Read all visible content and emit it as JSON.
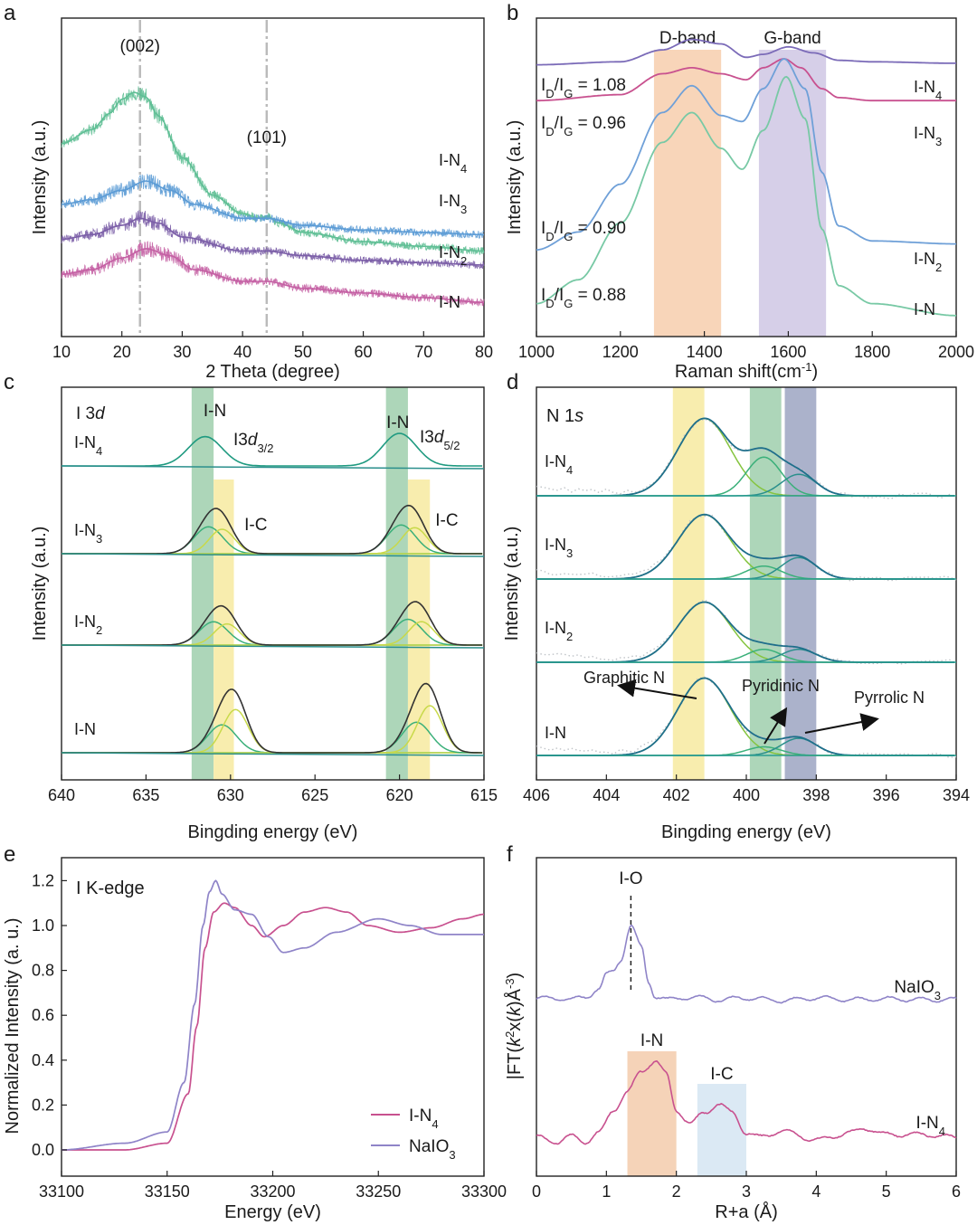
{
  "chart_data": [
    {
      "panel": "a",
      "type": "line",
      "xlabel": "2 Theta (degree)",
      "ylabel": "Intensity (a.u.)",
      "xlim": [
        10,
        80
      ],
      "xticks": [
        "10",
        "20",
        "30",
        "40",
        "50",
        "60",
        "70",
        "80"
      ],
      "annotations": [
        "(002)",
        "(101)"
      ],
      "reference_lines_x": [
        23,
        44
      ],
      "series": [
        {
          "name": "I-N4",
          "color": "#5fbf95",
          "x": [
            10,
            15,
            18,
            20,
            22,
            24,
            26,
            30,
            35,
            40,
            43,
            44,
            46,
            50,
            60,
            70,
            80
          ],
          "y": [
            0.78,
            0.84,
            0.91,
            0.97,
            1.0,
            0.98,
            0.9,
            0.72,
            0.56,
            0.48,
            0.46,
            0.47,
            0.44,
            0.4,
            0.36,
            0.34,
            0.32
          ]
        },
        {
          "name": "I-N3",
          "color": "#5b9bd5",
          "x": [
            10,
            15,
            20,
            24,
            28,
            32,
            40,
            44,
            50,
            60,
            70,
            80
          ],
          "y": [
            0.52,
            0.54,
            0.58,
            0.62,
            0.58,
            0.52,
            0.46,
            0.46,
            0.43,
            0.41,
            0.4,
            0.39
          ]
        },
        {
          "name": "I-N2",
          "color": "#7b5ea7",
          "x": [
            10,
            15,
            20,
            23,
            26,
            30,
            40,
            44,
            50,
            60,
            70,
            80
          ],
          "y": [
            0.37,
            0.39,
            0.43,
            0.46,
            0.44,
            0.38,
            0.32,
            0.32,
            0.3,
            0.28,
            0.27,
            0.26
          ]
        },
        {
          "name": "I-N",
          "color": "#c45fa3",
          "x": [
            10,
            15,
            20,
            24,
            28,
            32,
            40,
            44,
            50,
            60,
            70,
            80
          ],
          "y": [
            0.22,
            0.24,
            0.29,
            0.33,
            0.3,
            0.24,
            0.19,
            0.19,
            0.16,
            0.14,
            0.12,
            0.1
          ]
        }
      ]
    },
    {
      "panel": "b",
      "type": "line",
      "xlabel": "Raman shift(cm",
      "xlabel_sup": "-1",
      "xlabel_end": ")",
      "ylabel": "Intensity (a.u.)",
      "xlim": [
        1000,
        2000
      ],
      "xticks": [
        "1000",
        "1200",
        "1400",
        "1600",
        "1800",
        "2000"
      ],
      "bands": [
        {
          "label": "D-band",
          "range": [
            1280,
            1440
          ],
          "color": "#f8d5b9"
        },
        {
          "label": "G-band",
          "range": [
            1530,
            1690
          ],
          "color": "#d6cfe8"
        }
      ],
      "ratio_labels": [
        "1.08",
        "0.96",
        "0.90",
        "0.88"
      ],
      "series": [
        {
          "name": "I-N4",
          "ratio": "1.08",
          "color": "#7b6bb8",
          "x": [
            1000,
            1200,
            1300,
            1370,
            1440,
            1500,
            1540,
            1600,
            1660,
            1720,
            1800,
            2000
          ],
          "y": [
            0.88,
            0.89,
            0.93,
            0.965,
            0.95,
            0.905,
            0.915,
            0.94,
            0.92,
            0.895,
            0.89,
            0.885
          ]
        },
        {
          "name": "I-N3",
          "ratio": "0.96",
          "color": "#c8518f",
          "x": [
            1000,
            1200,
            1300,
            1370,
            1440,
            1500,
            1540,
            1590,
            1630,
            1680,
            1720,
            1800,
            2000
          ],
          "y": [
            0.76,
            0.78,
            0.85,
            0.87,
            0.85,
            0.83,
            0.87,
            0.9,
            0.87,
            0.8,
            0.77,
            0.76,
            0.76
          ]
        },
        {
          "name": "I-N2",
          "ratio": "0.90",
          "color": "#6fa0d8",
          "x": [
            1000,
            1100,
            1200,
            1300,
            1370,
            1440,
            1490,
            1540,
            1590,
            1640,
            1680,
            1720,
            1800,
            2000
          ],
          "y": [
            0.26,
            0.32,
            0.48,
            0.72,
            0.81,
            0.71,
            0.69,
            0.8,
            0.9,
            0.8,
            0.52,
            0.34,
            0.29,
            0.28
          ]
        },
        {
          "name": "I-N",
          "ratio": "0.88",
          "color": "#78c9a5",
          "x": [
            1000,
            1100,
            1200,
            1300,
            1370,
            1440,
            1490,
            1540,
            1595,
            1640,
            1680,
            1720,
            1800,
            2000
          ],
          "y": [
            0.08,
            0.16,
            0.35,
            0.62,
            0.72,
            0.6,
            0.53,
            0.66,
            0.84,
            0.7,
            0.33,
            0.14,
            0.08,
            0.04
          ]
        }
      ]
    },
    {
      "panel": "c",
      "type": "line",
      "title": "I 3",
      "title_italic": "d",
      "xlabel": "Bingding energy (eV)",
      "ylabel": "Intensity (a.u.)",
      "xlim": [
        640,
        615
      ],
      "reversed_x": true,
      "xticks": [
        "640",
        "635",
        "630",
        "625",
        "620",
        "615"
      ],
      "bands": [
        {
          "label": "I-N",
          "range": [
            632.3,
            631.0
          ],
          "color": "#a9d4b5"
        },
        {
          "label": "I-C",
          "range": [
            631.0,
            629.8
          ],
          "color": "#f8ecaa"
        },
        {
          "label": "I-N",
          "range": [
            620.8,
            619.5
          ],
          "color": "#a9d4b5"
        },
        {
          "label": "I-C",
          "range": [
            619.5,
            618.2
          ],
          "color": "#f8ecaa"
        }
      ],
      "peak_labels": {
        "i3d32": "I3",
        "i3d32_sub": "d",
        "i3d32_subsub": "3/2",
        "i3d52": "I3",
        "i3d52_sub": "d",
        "i3d52_subsub": "5/2"
      },
      "samples": [
        {
          "name": "I-N4",
          "peaks_eV": [
            631.5,
            620.0
          ],
          "heights": [
            0.45,
            0.5
          ]
        },
        {
          "name": "I-N3",
          "peaks_eV": [
            631.3,
            619.9
          ],
          "heights": [
            0.75,
            0.8
          ]
        },
        {
          "name": "I-N2",
          "peaks_eV": [
            631.0,
            619.5
          ],
          "heights": [
            0.65,
            0.72
          ]
        },
        {
          "name": "I-N",
          "peaks_eV": [
            630.5,
            619.0
          ],
          "heights": [
            0.78,
            0.85
          ]
        }
      ]
    },
    {
      "panel": "d",
      "type": "line",
      "title": "N 1",
      "title_italic": "s",
      "xlabel": "Bingding energy (eV)",
      "ylabel": "Intensity (a.u.)",
      "xlim": [
        406,
        394
      ],
      "reversed_x": true,
      "xticks": [
        "406",
        "404",
        "402",
        "400",
        "398",
        "396",
        "394"
      ],
      "bands": [
        {
          "label": "Graphitic N",
          "range": [
            402.1,
            401.2
          ],
          "color": "#f8ecaa"
        },
        {
          "label": "Pyridinic N",
          "range": [
            399.9,
            399.0
          ],
          "color": "#a9d4b5"
        },
        {
          "label": "Pyrrolic N",
          "range": [
            398.9,
            398.0
          ],
          "color": "#a6aec8"
        }
      ],
      "samples": [
        {
          "name": "I-N4",
          "components": [
            [
              401.2,
              0.9
            ],
            [
              399.5,
              0.45
            ],
            [
              398.5,
              0.25
            ]
          ]
        },
        {
          "name": "I-N3",
          "components": [
            [
              401.2,
              0.75
            ],
            [
              399.5,
              0.15
            ],
            [
              398.5,
              0.25
            ]
          ]
        },
        {
          "name": "I-N2",
          "components": [
            [
              401.2,
              0.7
            ],
            [
              399.5,
              0.15
            ],
            [
              398.5,
              0.15
            ]
          ]
        },
        {
          "name": "I-N",
          "components": [
            [
              401.2,
              0.9
            ],
            [
              399.5,
              0.1
            ],
            [
              398.5,
              0.2
            ]
          ]
        }
      ]
    },
    {
      "panel": "e",
      "type": "line",
      "title": "I K-edge",
      "xlabel": "Energy (eV)",
      "ylabel": "Normalized Intensity (a. u.)",
      "xlim": [
        33100,
        33300
      ],
      "ylim": [
        -0.1,
        1.3
      ],
      "xticks": [
        "33100",
        "33150",
        "33200",
        "33250",
        "33300"
      ],
      "yticks": [
        "0.0",
        "0.2",
        "0.4",
        "0.6",
        "0.8",
        "1.0",
        "1.2"
      ],
      "legend_position": "bottom-right",
      "series": [
        {
          "name": "I-N4",
          "color": "#c8518f",
          "x": [
            33100,
            33130,
            33150,
            33160,
            33164,
            33168,
            33172,
            33177,
            33182,
            33190,
            33196,
            33205,
            33215,
            33225,
            33235,
            33245,
            33260,
            33275,
            33290,
            33300
          ],
          "y": [
            0.0,
            0.0,
            0.03,
            0.25,
            0.55,
            0.9,
            1.06,
            1.1,
            1.08,
            1.0,
            0.95,
            1.0,
            1.06,
            1.08,
            1.06,
            1.0,
            0.97,
            0.99,
            1.03,
            1.05
          ]
        },
        {
          "name": "NaIO3",
          "color": "#8f84c8",
          "x": [
            33100,
            33130,
            33150,
            33158,
            33163,
            33167,
            33170,
            33173,
            33176,
            33182,
            33190,
            33198,
            33205,
            33215,
            33230,
            33250,
            33265,
            33280,
            33300
          ],
          "y": [
            0.0,
            0.03,
            0.08,
            0.3,
            0.65,
            1.0,
            1.15,
            1.2,
            1.14,
            1.07,
            1.05,
            0.95,
            0.88,
            0.9,
            0.97,
            1.03,
            1.0,
            0.96,
            0.96
          ]
        }
      ]
    },
    {
      "panel": "f",
      "type": "line",
      "xlabel": "R+a (Å)",
      "ylabel_prefix": "|FT(",
      "ylabel_italic1": "k",
      "ylabel_sup1": "2",
      "ylabel_mid": "x(",
      "ylabel_italic2": "k",
      "ylabel_end": ")Å",
      "ylabel_sup2": "-3",
      "ylabel_close": ")",
      "xlim": [
        0,
        6
      ],
      "xticks": [
        "0",
        "1",
        "2",
        "3",
        "4",
        "5",
        "6"
      ],
      "annotations": [
        "I-O"
      ],
      "reference_lines_x": [
        1.35
      ],
      "bands": [
        {
          "label": "I-N",
          "range": [
            1.3,
            2.0
          ],
          "color": "#f5d3b8"
        },
        {
          "label": "I-C",
          "range": [
            2.3,
            3.0
          ],
          "color": "#dbe9f4"
        }
      ],
      "series": [
        {
          "name": "NaIO3",
          "color": "#8f84c8",
          "x": [
            0,
            0.3,
            0.5,
            0.7,
            0.9,
            1.0,
            1.1,
            1.2,
            1.35,
            1.5,
            1.6,
            1.7,
            1.9,
            2.2,
            2.6,
            3.0,
            3.5,
            4.0,
            4.5,
            5.0,
            5.5,
            6.0
          ],
          "y": [
            0.0,
            0.01,
            -0.01,
            0.02,
            0.12,
            0.28,
            0.32,
            0.45,
            0.85,
            0.6,
            0.2,
            0.03,
            -0.01,
            0.02,
            -0.01,
            0.01,
            -0.02,
            0.01,
            -0.01,
            0.0,
            -0.01,
            -0.01
          ]
        },
        {
          "name": "I-N4",
          "color": "#c8518f",
          "x": [
            0,
            0.3,
            0.5,
            0.7,
            0.9,
            1.1,
            1.3,
            1.5,
            1.7,
            1.85,
            2.0,
            2.2,
            2.4,
            2.6,
            2.8,
            3.0,
            3.2,
            3.5,
            4.0,
            4.5,
            4.7,
            5.0,
            5.5,
            6.0
          ],
          "y": [
            0.05,
            0.0,
            0.06,
            0.0,
            0.1,
            0.35,
            0.55,
            0.78,
            0.9,
            0.75,
            0.35,
            0.2,
            0.32,
            0.42,
            0.32,
            0.1,
            0.05,
            0.12,
            0.02,
            0.1,
            0.15,
            0.08,
            0.08,
            0.05
          ]
        }
      ]
    }
  ]
}
